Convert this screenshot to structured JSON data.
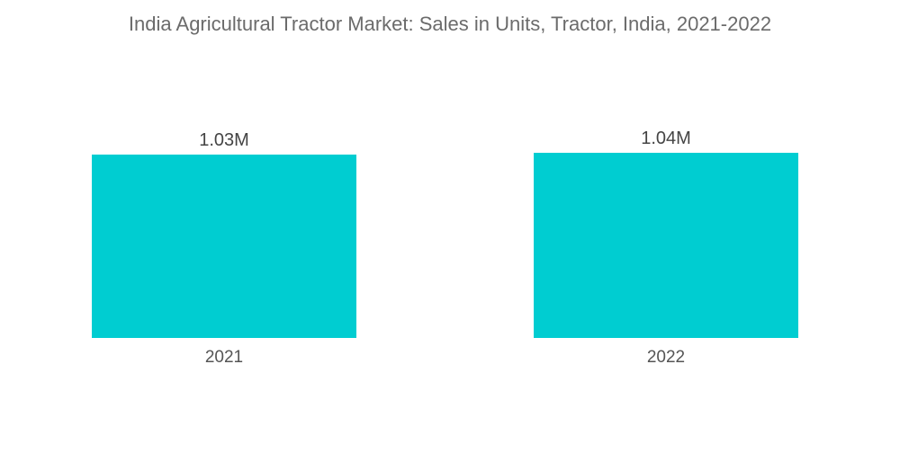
{
  "chart_data": {
    "type": "bar",
    "title": "India Agricultural Tractor Market:  Sales in Units, Tractor, India,  2021-2022",
    "categories": [
      "2021",
      "2022"
    ],
    "values": [
      1030000,
      1040000
    ],
    "data_labels": [
      "1.03M",
      "1.04M"
    ],
    "xlabel": "",
    "ylabel": "",
    "ylim": [
      0,
      1040000
    ],
    "grid": false,
    "legend": "none",
    "bar_color": "#00cdd1"
  }
}
